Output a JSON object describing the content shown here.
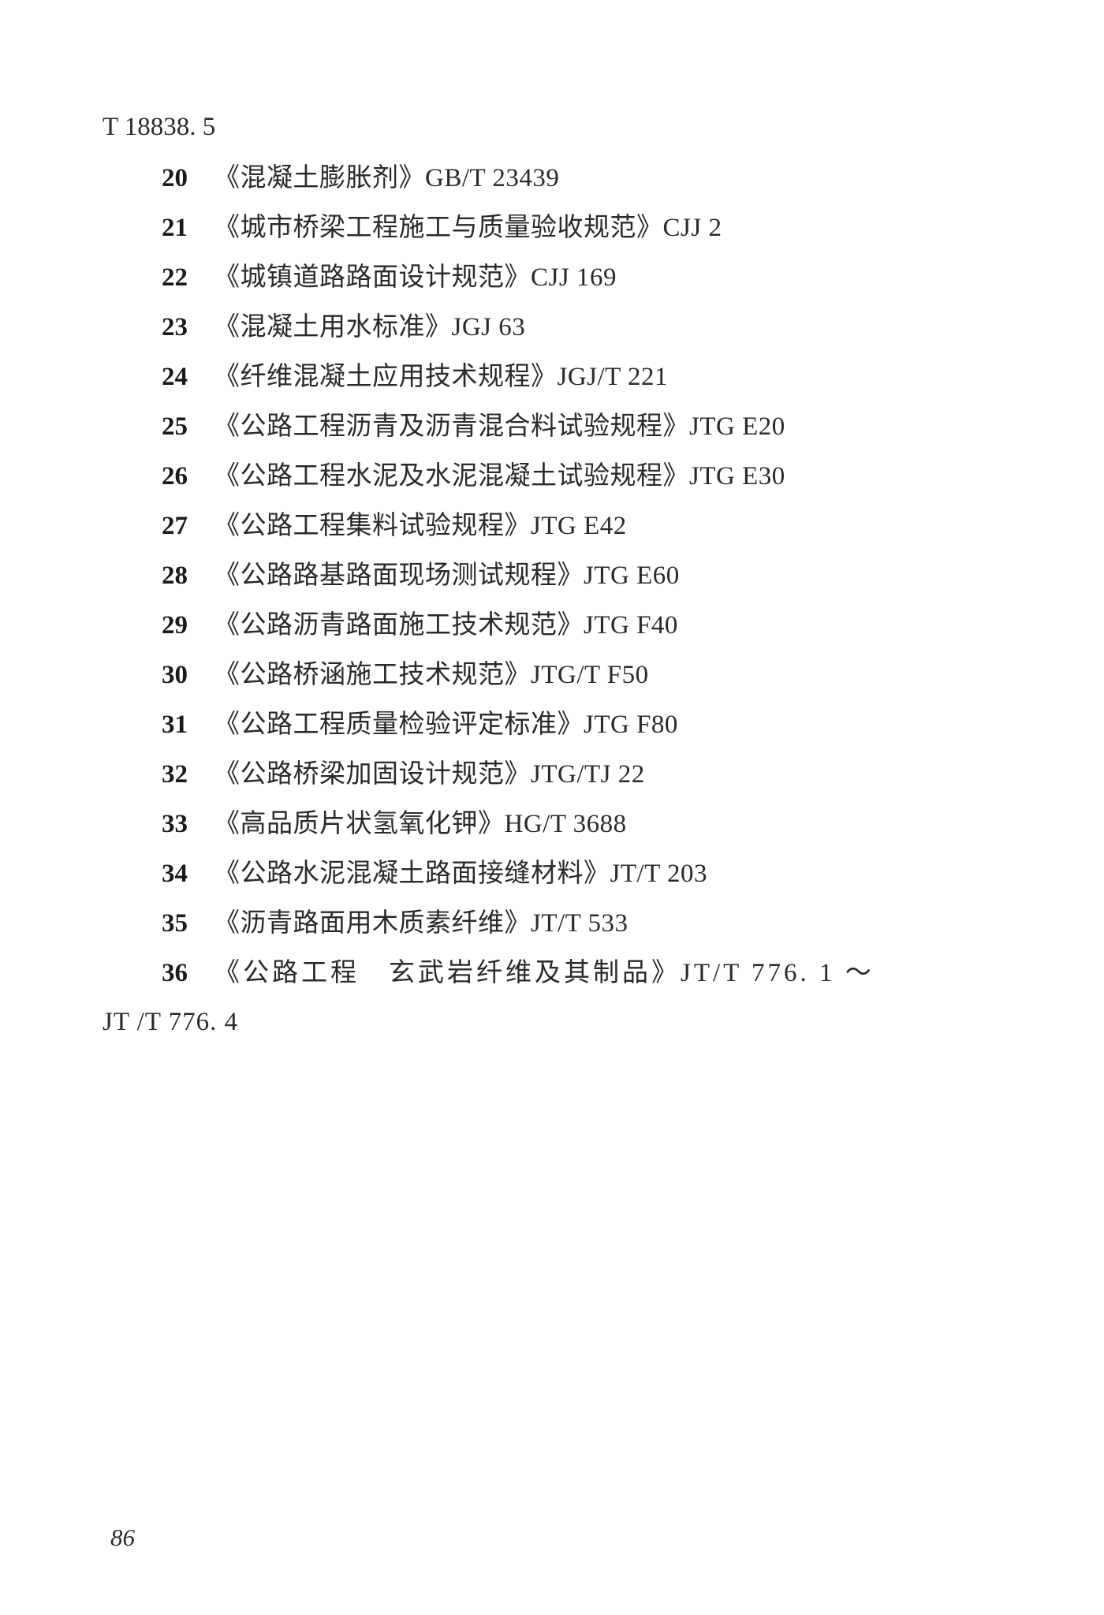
{
  "document": {
    "continuation": "T 18838. 5",
    "items": [
      {
        "num": "20",
        "text": "《混凝土膨胀剂》GB/T 23439"
      },
      {
        "num": "21",
        "text": "《城市桥梁工程施工与质量验收规范》CJJ 2"
      },
      {
        "num": "22",
        "text": "《城镇道路路面设计规范》CJJ 169"
      },
      {
        "num": "23",
        "text": "《混凝土用水标准》JGJ 63"
      },
      {
        "num": "24",
        "text": "《纤维混凝土应用技术规程》JGJ/T 221"
      },
      {
        "num": "25",
        "text": "《公路工程沥青及沥青混合料试验规程》JTG E20"
      },
      {
        "num": "26",
        "text": "《公路工程水泥及水泥混凝土试验规程》JTG E30"
      },
      {
        "num": "27",
        "text": "《公路工程集料试验规程》JTG E42"
      },
      {
        "num": "28",
        "text": "《公路路基路面现场测试规程》JTG E60"
      },
      {
        "num": "29",
        "text": "《公路沥青路面施工技术规范》JTG F40"
      },
      {
        "num": "30",
        "text": "《公路桥涵施工技术规范》JTG/T F50"
      },
      {
        "num": "31",
        "text": "《公路工程质量检验评定标准》JTG F80"
      },
      {
        "num": "32",
        "text": "《公路桥梁加固设计规范》JTG/TJ 22"
      },
      {
        "num": "33",
        "text": "《高品质片状氢氧化钾》HG/T 3688"
      },
      {
        "num": "34",
        "text": "《公路水泥混凝土路面接缝材料》JT/T 203"
      },
      {
        "num": "35",
        "text": "《沥青路面用木质素纤维》JT/T 533"
      }
    ],
    "item36": {
      "num": "36",
      "line1": "《公路工程　玄武岩纤维及其制品》JT/T 776. 1 ～",
      "line2": "JT /T 776. 4"
    },
    "pageNumber": "86",
    "colors": {
      "background": "#ffffff",
      "text": "#2a2a2a",
      "bold_text": "#1a1a1a"
    },
    "typography": {
      "body_fontsize": 33,
      "page_num_fontsize": 31,
      "line_height": 1.88
    }
  }
}
